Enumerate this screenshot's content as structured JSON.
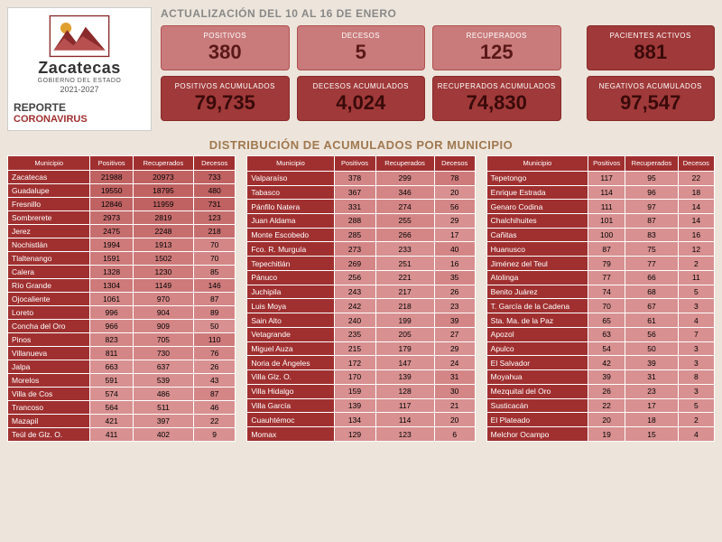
{
  "logo": {
    "title": "Zacatecas",
    "sub": "GOBIERNO DEL ESTADO",
    "years": "2021-2027",
    "report1": "REPORTE",
    "report2": "CORONAVIRUS",
    "mountain_color": "#8a2a2a",
    "sun_color": "#e0a030"
  },
  "update": "ACTUALIZACIÓN  DEL 10 AL 16 DE ENERO",
  "cards_top": [
    {
      "label": "POSITIVOS",
      "value": "380"
    },
    {
      "label": "DECESOS",
      "value": "5"
    },
    {
      "label": "RECUPERADOS",
      "value": "125"
    }
  ],
  "cards_top_right": {
    "label": "PACIENTES  ACTIVOS",
    "value": "881"
  },
  "cards_bottom": [
    {
      "label": "POSITIVOS  ACUMULADOS",
      "value": "79,735"
    },
    {
      "label": "DECESOS ACUMULADOS",
      "value": "4,024"
    },
    {
      "label": "RECUPERADOS ACUMULADOS",
      "value": "74,830"
    }
  ],
  "cards_bottom_right": {
    "label": "NEGATIVOS ACUMULADOS",
    "value": "97,547"
  },
  "dist_title": "DISTRIBUCIÓN DE ACUMULADOS POR MUNICIPIO",
  "columns": [
    "Municipio",
    "Positivos",
    "Recuperados",
    "Decesos"
  ],
  "tables": [
    [
      [
        "Zacatecas",
        "21988",
        "20973",
        "733"
      ],
      [
        "Guadalupe",
        "19550",
        "18795",
        "480"
      ],
      [
        "Fresnillo",
        "12846",
        "11959",
        "731"
      ],
      [
        "Sombrerete",
        "2973",
        "2819",
        "123"
      ],
      [
        "Jerez",
        "2475",
        "2248",
        "218"
      ],
      [
        "Nochistlán",
        "1994",
        "1913",
        "70"
      ],
      [
        "Tlaltenango",
        "1591",
        "1502",
        "70"
      ],
      [
        "Calera",
        "1328",
        "1230",
        "85"
      ],
      [
        "Río Grande",
        "1304",
        "1149",
        "146"
      ],
      [
        "Ojocaliente",
        "1061",
        "970",
        "87"
      ],
      [
        "Loreto",
        "996",
        "904",
        "89"
      ],
      [
        "Concha del Oro",
        "966",
        "909",
        "50"
      ],
      [
        "Pinos",
        "823",
        "705",
        "110"
      ],
      [
        "Villanueva",
        "811",
        "730",
        "76"
      ],
      [
        "Jalpa",
        "663",
        "637",
        "26"
      ],
      [
        "Morelos",
        "591",
        "539",
        "43"
      ],
      [
        "Villa de Cos",
        "574",
        "486",
        "87"
      ],
      [
        "Trancoso",
        "564",
        "511",
        "46"
      ],
      [
        "Mazapil",
        "421",
        "397",
        "22"
      ],
      [
        "Teúl de Glz. O.",
        "411",
        "402",
        "9"
      ]
    ],
    [
      [
        "Valparaíso",
        "378",
        "299",
        "78"
      ],
      [
        "Tabasco",
        "367",
        "346",
        "20"
      ],
      [
        "Pánfilo Natera",
        "331",
        "274",
        "56"
      ],
      [
        "Juan Aldama",
        "288",
        "255",
        "29"
      ],
      [
        "Monte Escobedo",
        "285",
        "266",
        "17"
      ],
      [
        "Fco. R. Murguía",
        "273",
        "233",
        "40"
      ],
      [
        "Tepechitlán",
        "269",
        "251",
        "16"
      ],
      [
        "Pánuco",
        "256",
        "221",
        "35"
      ],
      [
        "Juchipila",
        "243",
        "217",
        "26"
      ],
      [
        "Luis Moya",
        "242",
        "218",
        "23"
      ],
      [
        "Sain Alto",
        "240",
        "199",
        "39"
      ],
      [
        "Vetagrande",
        "235",
        "205",
        "27"
      ],
      [
        "Miguel Auza",
        "215",
        "179",
        "29"
      ],
      [
        "Noria de Ángeles",
        "172",
        "147",
        "24"
      ],
      [
        "Villa Glz. O.",
        "170",
        "139",
        "31"
      ],
      [
        "Villa Hidalgo",
        "159",
        "128",
        "30"
      ],
      [
        "Villa García",
        "139",
        "117",
        "21"
      ],
      [
        "Cuauhtémoc",
        "134",
        "114",
        "20"
      ],
      [
        "Momax",
        "129",
        "123",
        "6"
      ]
    ],
    [
      [
        "Tepetongo",
        "117",
        "95",
        "22"
      ],
      [
        "Enrique Estrada",
        "114",
        "96",
        "18"
      ],
      [
        "Genaro Codina",
        "111",
        "97",
        "14"
      ],
      [
        "Chalchihuites",
        "101",
        "87",
        "14"
      ],
      [
        "Cañitas",
        "100",
        "83",
        "16"
      ],
      [
        "Huanusco",
        "87",
        "75",
        "12"
      ],
      [
        "Jiménez del Teul",
        "79",
        "77",
        "2"
      ],
      [
        "Atolinga",
        "77",
        "66",
        "11"
      ],
      [
        "Benito Juárez",
        "74",
        "68",
        "5"
      ],
      [
        "T. García de la Cadena",
        "70",
        "67",
        "3"
      ],
      [
        "Sta. Ma. de la Paz",
        "65",
        "61",
        "4"
      ],
      [
        "Apozol",
        "63",
        "56",
        "7"
      ],
      [
        "Apulco",
        "54",
        "50",
        "3"
      ],
      [
        "El Salvador",
        "42",
        "39",
        "3"
      ],
      [
        "Moyahua",
        "39",
        "31",
        "8"
      ],
      [
        "Mezquital del Oro",
        "26",
        "23",
        "3"
      ],
      [
        "Susticacán",
        "22",
        "17",
        "5"
      ],
      [
        "El Plateado",
        "20",
        "18",
        "2"
      ],
      [
        "Melchor Ocampo",
        "19",
        "15",
        "4"
      ]
    ]
  ],
  "shades": [
    [
      [
        4,
        4,
        4
      ],
      [
        4,
        4,
        4
      ],
      [
        4,
        4,
        4
      ],
      [
        3,
        3,
        3
      ],
      [
        3,
        3,
        3
      ],
      [
        2,
        2,
        1
      ],
      [
        2,
        2,
        1
      ],
      [
        2,
        2,
        1
      ],
      [
        2,
        2,
        2
      ],
      [
        1,
        1,
        1
      ],
      [
        1,
        1,
        1
      ],
      [
        1,
        1,
        0
      ],
      [
        1,
        1,
        2
      ],
      [
        1,
        1,
        1
      ],
      [
        0,
        0,
        0
      ],
      [
        0,
        0,
        0
      ],
      [
        0,
        0,
        1
      ],
      [
        0,
        0,
        0
      ],
      [
        0,
        0,
        0
      ],
      [
        0,
        0,
        0
      ]
    ],
    [
      [
        1,
        1,
        2
      ],
      [
        1,
        1,
        0
      ],
      [
        1,
        1,
        1
      ],
      [
        1,
        1,
        0
      ],
      [
        1,
        1,
        0
      ],
      [
        1,
        0,
        1
      ],
      [
        1,
        0,
        0
      ],
      [
        0,
        0,
        1
      ],
      [
        0,
        0,
        0
      ],
      [
        0,
        0,
        0
      ],
      [
        0,
        0,
        1
      ],
      [
        0,
        0,
        0
      ],
      [
        0,
        0,
        0
      ],
      [
        0,
        0,
        0
      ],
      [
        0,
        0,
        1
      ],
      [
        0,
        0,
        1
      ],
      [
        0,
        0,
        0
      ],
      [
        0,
        0,
        0
      ],
      [
        0,
        0,
        0
      ]
    ],
    [
      [
        0,
        0,
        0
      ],
      [
        0,
        0,
        0
      ],
      [
        0,
        0,
        0
      ],
      [
        0,
        0,
        0
      ],
      [
        0,
        0,
        0
      ],
      [
        0,
        0,
        0
      ],
      [
        0,
        0,
        0
      ],
      [
        0,
        0,
        0
      ],
      [
        0,
        0,
        0
      ],
      [
        0,
        0,
        0
      ],
      [
        0,
        0,
        0
      ],
      [
        0,
        0,
        0
      ],
      [
        0,
        0,
        0
      ],
      [
        0,
        0,
        0
      ],
      [
        0,
        0,
        0
      ],
      [
        0,
        0,
        0
      ],
      [
        0,
        0,
        0
      ],
      [
        0,
        0,
        0
      ],
      [
        0,
        0,
        0
      ]
    ]
  ]
}
